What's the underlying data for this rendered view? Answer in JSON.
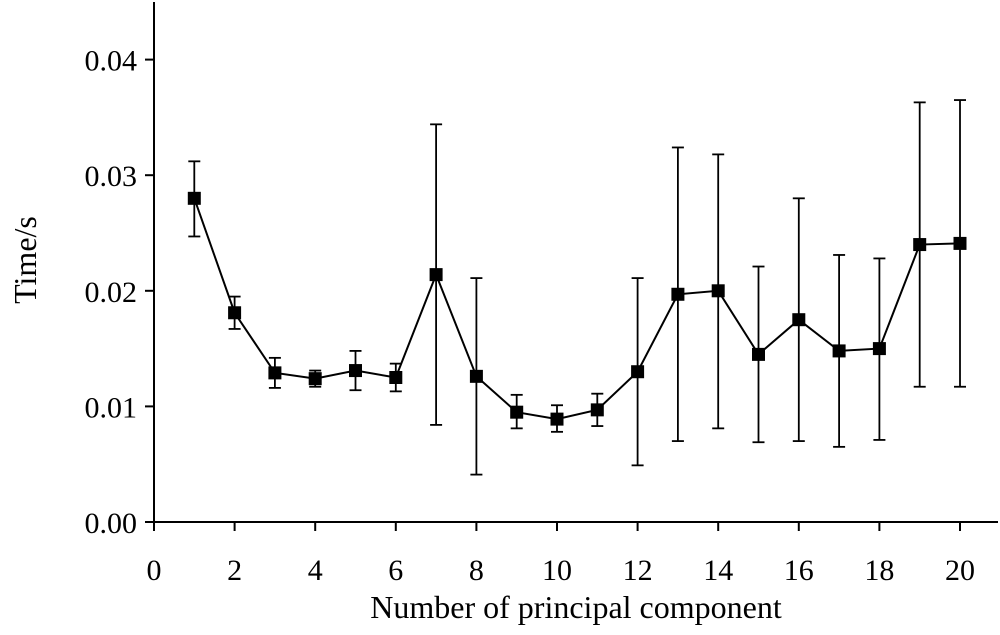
{
  "chart_data": {
    "type": "line",
    "title": "",
    "xlabel": "Number of principal component",
    "ylabel": "Time/s",
    "xlim": [
      0,
      21
    ],
    "ylim": [
      0,
      0.045
    ],
    "x_ticks": [
      0,
      2,
      4,
      6,
      8,
      10,
      12,
      14,
      16,
      18,
      20
    ],
    "x_tick_labels": [
      "0",
      "2",
      "4",
      "6",
      "8",
      "10",
      "12",
      "14",
      "16",
      "18",
      "20"
    ],
    "y_ticks": [
      0,
      0.01,
      0.02,
      0.03,
      0.04
    ],
    "y_tick_labels": [
      "0.00",
      "0.01",
      "0.02",
      "0.03",
      "0.04"
    ],
    "grid": false,
    "legend": "none",
    "marker": "square",
    "colors": {
      "line": "#000000",
      "marker": "#000000"
    },
    "series": [
      {
        "x": [
          1,
          2,
          3,
          4,
          5,
          6,
          7,
          8,
          9,
          10,
          11,
          12,
          13,
          14,
          15,
          16,
          17,
          18,
          19,
          20
        ],
        "y": [
          0.028,
          0.0181,
          0.0129,
          0.0124,
          0.0131,
          0.0125,
          0.0214,
          0.0126,
          0.0095,
          0.0089,
          0.0097,
          0.013,
          0.0197,
          0.02,
          0.0145,
          0.0175,
          0.0148,
          0.015,
          0.024,
          0.0241
        ],
        "err_low": [
          0.0247,
          0.0167,
          0.0116,
          0.0117,
          0.0114,
          0.0113,
          0.0084,
          0.0041,
          0.0081,
          0.0078,
          0.0083,
          0.0049,
          0.007,
          0.0081,
          0.0069,
          0.007,
          0.0065,
          0.0071,
          0.0117,
          0.0117
        ],
        "err_high": [
          0.0312,
          0.0195,
          0.0142,
          0.0131,
          0.0148,
          0.0137,
          0.0344,
          0.0211,
          0.011,
          0.0101,
          0.0111,
          0.0211,
          0.0324,
          0.0318,
          0.0221,
          0.028,
          0.0231,
          0.0228,
          0.0363,
          0.0365
        ]
      }
    ]
  }
}
